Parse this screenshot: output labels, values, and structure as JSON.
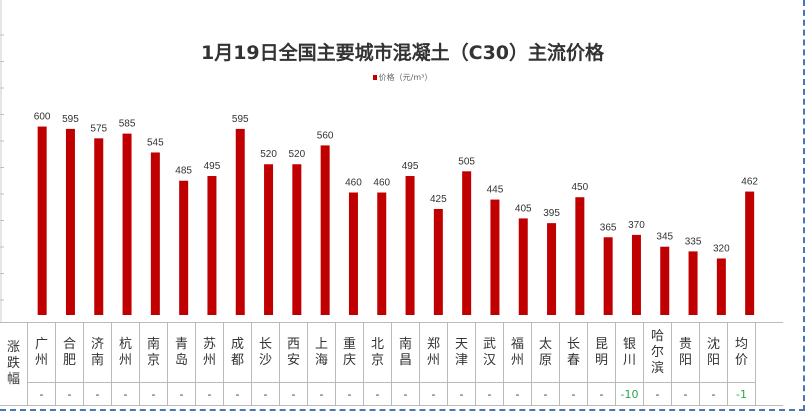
{
  "chart_data": {
    "type": "bar",
    "title": "1月19日全国主要城市混凝土（C30）主流价格",
    "legend": [
      {
        "name": "价格（元/m³）",
        "color": "#c00000"
      }
    ],
    "legend_position": "top",
    "categories": [
      "广州",
      "合肥",
      "济南",
      "杭州",
      "南京",
      "青岛",
      "苏州",
      "成都",
      "长沙",
      "西安",
      "上海",
      "重庆",
      "北京",
      "南昌",
      "郑州",
      "天津",
      "武汉",
      "福州",
      "太原",
      "长春",
      "昆明",
      "银川",
      "哈尔滨",
      "贵阳",
      "沈阳",
      "均价"
    ],
    "series": [
      {
        "name": "价格（元/m³）",
        "values": [
          600,
          595,
          575,
          585,
          545,
          485,
          495,
          595,
          520,
          520,
          560,
          460,
          460,
          495,
          425,
          505,
          445,
          405,
          395,
          450,
          365,
          370,
          345,
          335,
          320,
          462
        ]
      }
    ],
    "ylim": [
      200,
      650
    ],
    "grid": false,
    "bar_color": "#c00000"
  },
  "table": {
    "row_label": "涨跌幅",
    "changes": [
      "-",
      "-",
      "-",
      "-",
      "-",
      "-",
      "-",
      "-",
      "-",
      "-",
      "-",
      "-",
      "-",
      "-",
      "-",
      "-",
      "-",
      "-",
      "-",
      "-",
      "-",
      "-10",
      "-",
      "-",
      "-",
      "-1"
    ]
  },
  "colors": {
    "positive_change": "#2aa84a",
    "border": "#4a76b5"
  }
}
